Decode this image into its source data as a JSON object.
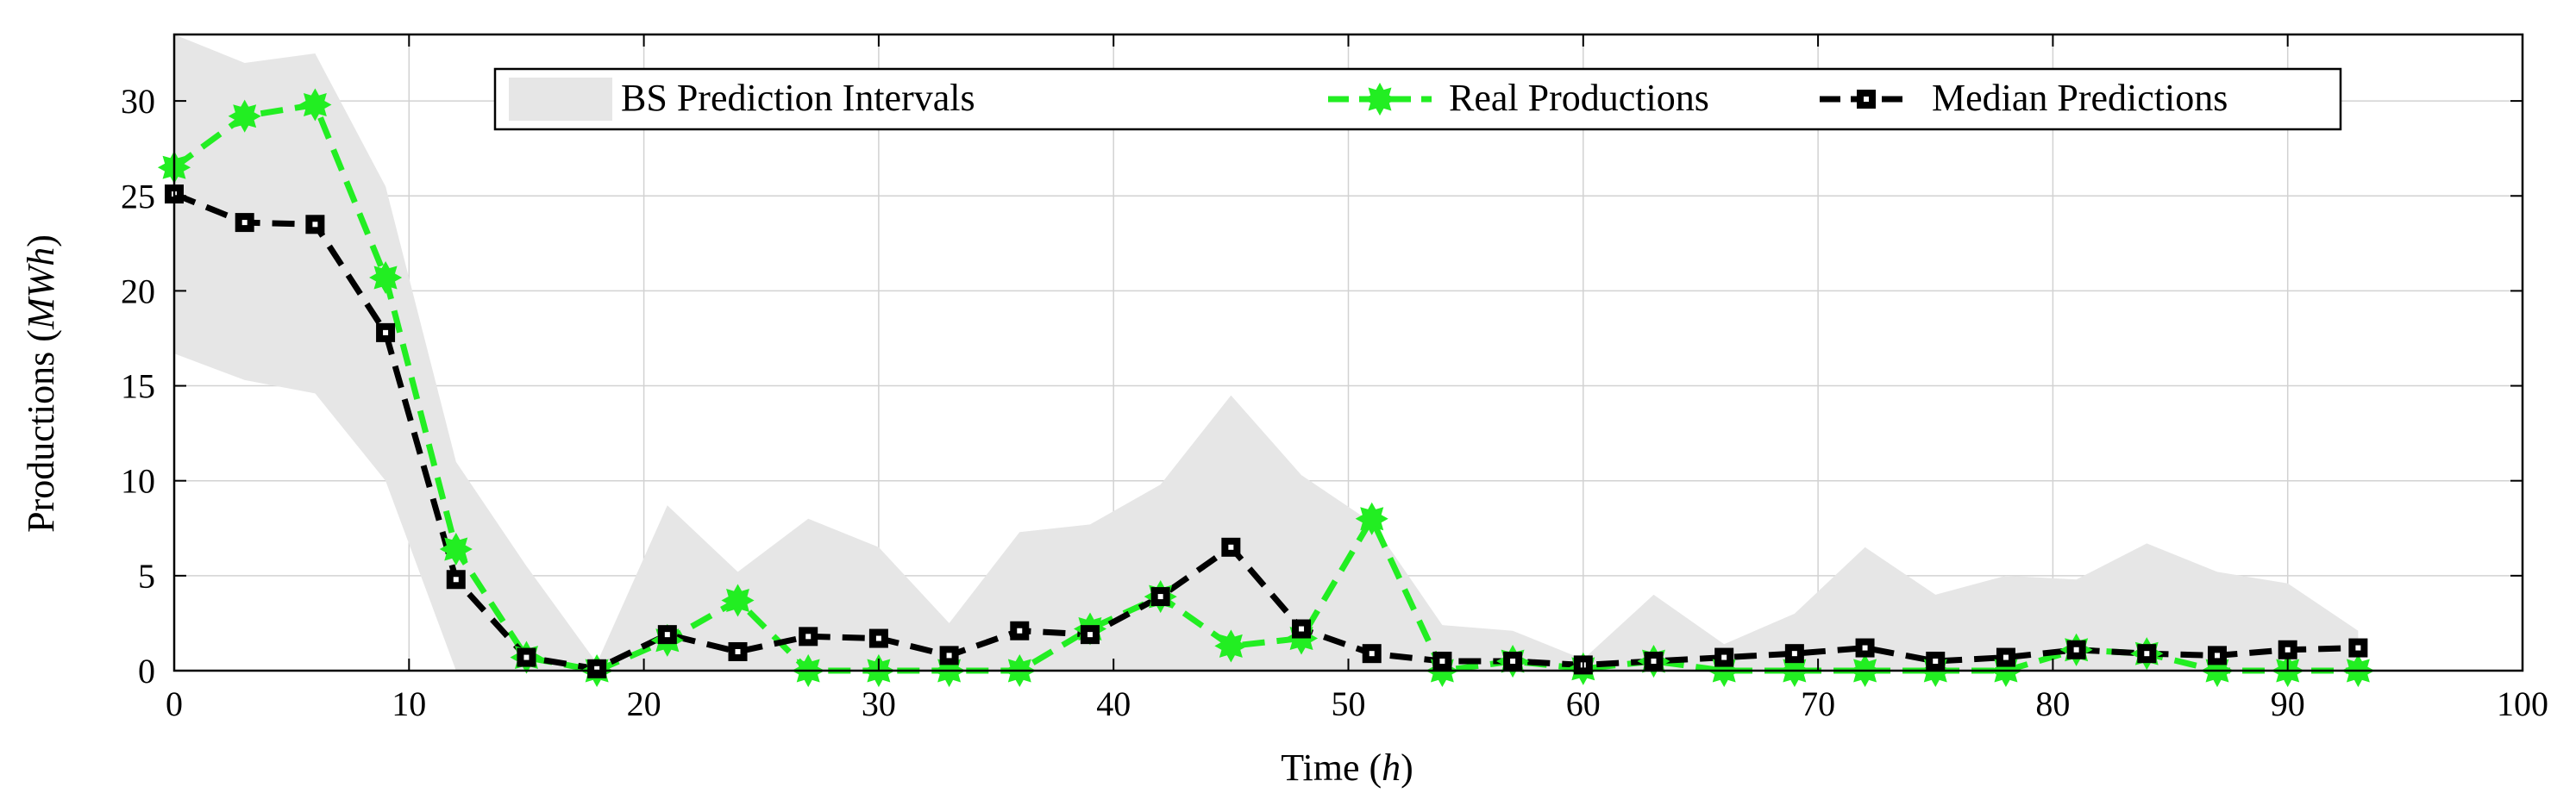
{
  "chart_data": {
    "type": "line",
    "title": "",
    "xlabel": "Time",
    "xlabel_unit": "h",
    "ylabel": "Productions",
    "ylabel_unit": "MWh",
    "xlim": [
      0,
      100
    ],
    "ylim": [
      0,
      33.5
    ],
    "xticks": [
      0,
      10,
      20,
      30,
      40,
      50,
      60,
      70,
      80,
      90,
      100
    ],
    "yticks": [
      0,
      5,
      10,
      15,
      20,
      25,
      30
    ],
    "grid": true,
    "legend_position": "top",
    "colors": {
      "band": "#e6e6e6",
      "real": "#22ee22",
      "median": "#000000",
      "grid": "#d2d2d2"
    },
    "band": {
      "name": "BS Prediction Intervals",
      "x": [
        0,
        3,
        6,
        9,
        12,
        15,
        18,
        21,
        24,
        27,
        30,
        33,
        36,
        39,
        42,
        45,
        48,
        51,
        54,
        57,
        60,
        63,
        66,
        69,
        72,
        75,
        78,
        81,
        84,
        87,
        90,
        93
      ],
      "upper": [
        33.5,
        32.0,
        32.5,
        25.5,
        11.0,
        5.5,
        0.4,
        8.7,
        5.2,
        8.0,
        6.5,
        2.5,
        7.3,
        7.7,
        9.8,
        14.5,
        10.3,
        7.8,
        2.4,
        2.1,
        0.6,
        4.0,
        1.4,
        3.0,
        6.5,
        4.0,
        5.0,
        4.8,
        6.7,
        5.2,
        4.6,
        2.1
      ],
      "lower": [
        16.7,
        15.3,
        14.6,
        10.0,
        0,
        0,
        0,
        0,
        0,
        0,
        0,
        0,
        0,
        0,
        0,
        0,
        0,
        0,
        0,
        0,
        0,
        0,
        0,
        0,
        0,
        0,
        0,
        0,
        0,
        0,
        0,
        0
      ]
    },
    "series": [
      {
        "name": "Real Productions",
        "x": [
          0,
          3,
          6,
          9,
          12,
          15,
          18,
          21,
          24,
          27,
          30,
          33,
          36,
          39,
          42,
          45,
          48,
          51,
          54,
          57,
          60,
          63,
          66,
          69,
          72,
          75,
          78,
          81,
          84,
          87,
          90,
          93
        ],
        "values": [
          26.5,
          29.2,
          29.8,
          20.7,
          6.4,
          0.7,
          0.0,
          1.6,
          3.7,
          0.0,
          0.0,
          0.0,
          0.0,
          2.2,
          3.9,
          1.3,
          1.7,
          8.0,
          0.0,
          0.5,
          0.1,
          0.5,
          0.0,
          0.0,
          0.0,
          0.0,
          0.0,
          1.1,
          0.9,
          0.0,
          0.0,
          0.0
        ],
        "style": "dashed",
        "marker": "star"
      },
      {
        "name": "Median Predictions",
        "x": [
          0,
          3,
          6,
          9,
          12,
          15,
          18,
          21,
          24,
          27,
          30,
          33,
          36,
          39,
          42,
          45,
          48,
          51,
          54,
          57,
          60,
          63,
          66,
          69,
          72,
          75,
          78,
          81,
          84,
          87,
          90,
          93
        ],
        "values": [
          25.1,
          23.6,
          23.5,
          17.8,
          4.8,
          0.7,
          0.1,
          1.9,
          1.0,
          1.8,
          1.7,
          0.8,
          2.1,
          1.9,
          3.9,
          6.5,
          2.2,
          0.9,
          0.5,
          0.5,
          0.3,
          0.5,
          0.7,
          0.9,
          1.2,
          0.5,
          0.7,
          1.1,
          0.9,
          0.8,
          1.1,
          1.2
        ],
        "style": "dashed",
        "marker": "square"
      }
    ]
  }
}
